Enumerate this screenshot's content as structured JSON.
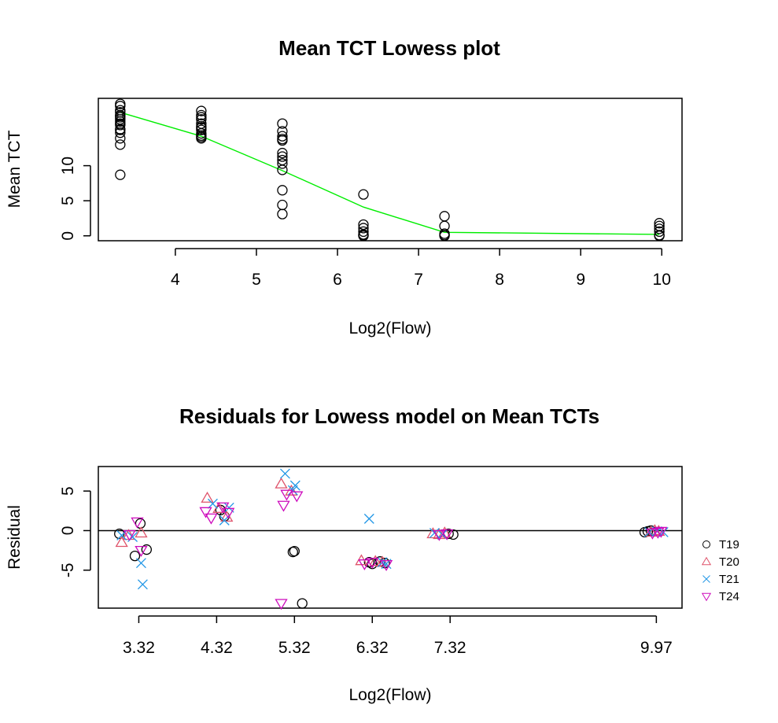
{
  "chart_data": [
    {
      "type": "scatter",
      "title": "Mean TCT Lowess plot",
      "xlabel": "Log2(Flow)",
      "ylabel": "Mean TCT",
      "xlim": [
        3.05,
        10.25
      ],
      "ylim": [
        -0.7,
        19.6
      ],
      "xticks": [
        4,
        5,
        6,
        7,
        8,
        9,
        10
      ],
      "yticks": [
        0,
        5,
        10
      ],
      "series": [
        {
          "kind": "points",
          "x": [
            3.32,
            3.32,
            3.32,
            3.32,
            3.32,
            3.32,
            3.32,
            3.32,
            3.32,
            3.32,
            3.32,
            3.32,
            3.32,
            3.32,
            3.32,
            3.32,
            3.32,
            4.32,
            4.32,
            4.32,
            4.32,
            4.32,
            4.32,
            4.32,
            4.32,
            4.32,
            4.32,
            4.32,
            4.32,
            5.32,
            5.32,
            5.32,
            5.32,
            5.32,
            5.32,
            5.32,
            5.32,
            5.32,
            5.32,
            5.32,
            5.32,
            5.32,
            6.32,
            6.32,
            6.32,
            6.32,
            6.32,
            6.32,
            6.32,
            7.32,
            7.32,
            7.32,
            7.32,
            7.32,
            9.97,
            9.97,
            9.97,
            9.97,
            9.97,
            9.97
          ],
          "y": [
            18.8,
            18.5,
            17.9,
            17.6,
            17.2,
            16.9,
            16.6,
            16.3,
            15.8,
            15.2,
            14.7,
            13.9,
            13.0,
            8.7,
            17.1,
            16.0,
            15.1,
            17.8,
            17.2,
            16.6,
            16.0,
            15.6,
            15.1,
            14.6,
            14.1,
            16.9,
            15.4,
            14.3,
            13.9,
            16.0,
            14.9,
            14.2,
            13.8,
            11.8,
            11.3,
            10.3,
            9.4,
            6.5,
            4.4,
            3.1,
            13.6,
            10.8,
            5.9,
            1.6,
            1.1,
            0.6,
            0.1,
            0.0,
            0.2,
            2.8,
            1.4,
            0.3,
            0.0,
            0.1,
            1.8,
            1.4,
            1.0,
            0.6,
            0.1,
            0.0
          ]
        },
        {
          "kind": "line",
          "color": "#00ee00",
          "x": [
            3.32,
            4.32,
            5.32,
            6.32,
            7.32,
            9.97
          ],
          "y": [
            17.6,
            14.2,
            9.3,
            4.1,
            0.5,
            0.2
          ]
        }
      ]
    },
    {
      "type": "scatter",
      "title": "Residuals for Lowess model on Mean TCTs",
      "xlabel": "Log2(Flow)",
      "ylabel": "Residual",
      "xlim": [
        2.8,
        10.3
      ],
      "ylim": [
        -9.8,
        8.1
      ],
      "xticks": [
        3.32,
        4.32,
        5.32,
        6.32,
        7.32,
        9.97
      ],
      "xtick_labels": [
        "3.32",
        "4.32",
        "5.32",
        "6.32",
        "7.32",
        "9.97"
      ],
      "yticks": [
        -5,
        0,
        5
      ],
      "hline": 0,
      "legend_position": "right",
      "series": [
        {
          "name": "T19",
          "marker": "circle",
          "color": "#000000",
          "x": [
            3.07,
            3.27,
            3.34,
            3.42,
            4.37,
            4.42,
            5.3,
            5.32,
            5.42,
            6.28,
            6.32,
            6.42,
            6.48,
            7.3,
            7.36,
            9.82,
            9.86,
            9.9
          ],
          "y": [
            -0.4,
            -3.2,
            0.9,
            -2.4,
            2.6,
            1.8,
            -2.7,
            -2.6,
            -9.2,
            -4.0,
            -4.2,
            -3.9,
            -4.1,
            -0.4,
            -0.5,
            -0.2,
            -0.1,
            0.0
          ]
        },
        {
          "name": "T20",
          "marker": "triangle-up",
          "color": "#df536b",
          "x": [
            3.1,
            3.19,
            3.35,
            4.2,
            4.35,
            4.45,
            5.15,
            5.28,
            6.18,
            6.36,
            6.45,
            7.1,
            7.18,
            7.25,
            9.9,
            9.95,
            10.0
          ],
          "y": [
            -1.5,
            -0.6,
            -0.3,
            4.1,
            2.8,
            1.7,
            5.9,
            5.0,
            -3.8,
            -3.9,
            -4.0,
            -0.4,
            -0.5,
            -0.3,
            -0.2,
            0.0,
            -0.1
          ]
        },
        {
          "name": "T21",
          "marker": "x",
          "color": "#2297e6",
          "x": [
            3.1,
            3.24,
            3.35,
            3.37,
            4.27,
            4.42,
            4.48,
            5.2,
            5.3,
            5.33,
            6.28,
            6.45,
            6.5,
            7.12,
            7.22,
            9.88,
            9.98,
            10.06
          ],
          "y": [
            -0.6,
            -0.8,
            -4.1,
            -6.8,
            3.4,
            1.3,
            2.9,
            7.2,
            5.1,
            5.7,
            1.5,
            -4.0,
            -4.2,
            -0.3,
            -0.5,
            -0.2,
            -0.1,
            -0.2
          ]
        },
        {
          "name": "T24",
          "marker": "triangle-down",
          "color": "#cd0bbc",
          "x": [
            3.2,
            3.3,
            3.35,
            4.18,
            4.25,
            4.4,
            4.47,
            5.18,
            5.22,
            5.35,
            5.15,
            6.22,
            6.32,
            6.5,
            7.18,
            7.28,
            9.92,
            9.99,
            10.03
          ],
          "y": [
            -0.5,
            1.1,
            -2.5,
            2.4,
            1.6,
            3.0,
            2.3,
            3.2,
            4.6,
            4.4,
            -9.2,
            -4.2,
            -4.0,
            -4.3,
            -0.5,
            -0.4,
            -0.3,
            -0.2,
            -0.1
          ]
        }
      ]
    }
  ]
}
